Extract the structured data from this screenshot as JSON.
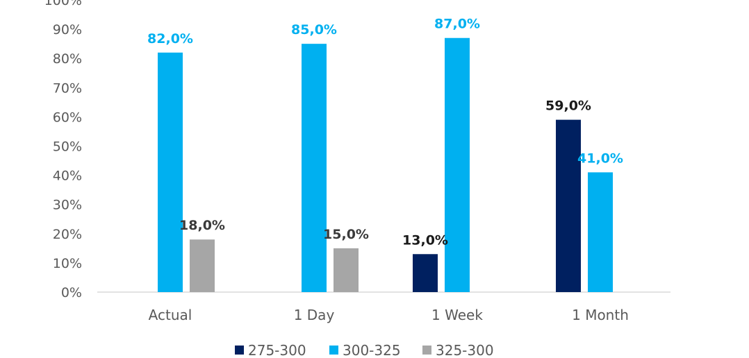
{
  "chart_data": {
    "type": "bar",
    "categories": [
      "Actual",
      "1 Day",
      "1 Week",
      "1 Month"
    ],
    "series": [
      {
        "name": "275-300",
        "color": "#002060",
        "label_color": "#1a1a1a",
        "values": [
          null,
          null,
          13.0,
          59.0
        ],
        "labels": [
          null,
          null,
          "13,0%",
          "59,0%"
        ]
      },
      {
        "name": "300-325",
        "color": "#00B0F0",
        "label_color": "#00B0F0",
        "values": [
          82.0,
          85.0,
          87.0,
          41.0
        ],
        "labels": [
          "82,0%",
          "85,0%",
          "87,0%",
          "41,0%"
        ]
      },
      {
        "name": "325-300",
        "color": "#A6A6A6",
        "label_color": "#3a3a3a",
        "values": [
          18.0,
          15.0,
          null,
          null
        ],
        "labels": [
          "18,0%",
          "15,0%",
          null,
          null
        ]
      }
    ],
    "ylim": [
      0,
      100
    ],
    "yticks": [
      "0%",
      "10%",
      "20%",
      "30%",
      "40%",
      "50%",
      "60%",
      "70%",
      "80%",
      "90%",
      "100%"
    ],
    "legend_position": "bottom",
    "grid": false
  }
}
